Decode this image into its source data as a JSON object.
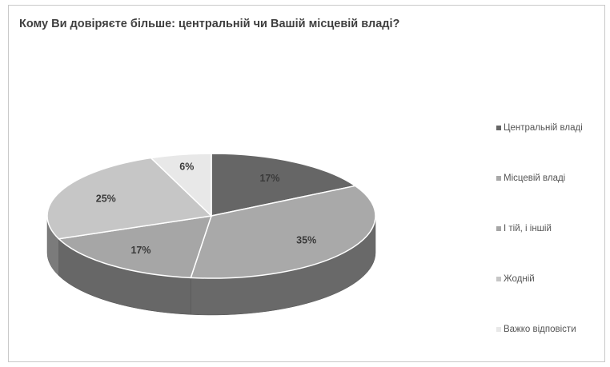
{
  "chart_data": {
    "type": "pie",
    "title": "Кому Ви довіряєте більше: центральній чи Вашій місцевій владі?",
    "three_d": true,
    "legend_position": "right",
    "slices": [
      {
        "name": "Центральній владі",
        "value": 17,
        "label": "17%",
        "color": "#666666"
      },
      {
        "name": "Місцевій владі",
        "value": 35,
        "label": "35%",
        "color": "#a9a9a9"
      },
      {
        "name": "І тій, і іншій",
        "value": 17,
        "label": "17%",
        "color": "#a6a6a6"
      },
      {
        "name": "Жодній",
        "value": 25,
        "label": "25%",
        "color": "#c6c6c6"
      },
      {
        "name": "Важко відповісти",
        "value": 6,
        "label": "6%",
        "color": "#e8e8e8"
      }
    ]
  }
}
